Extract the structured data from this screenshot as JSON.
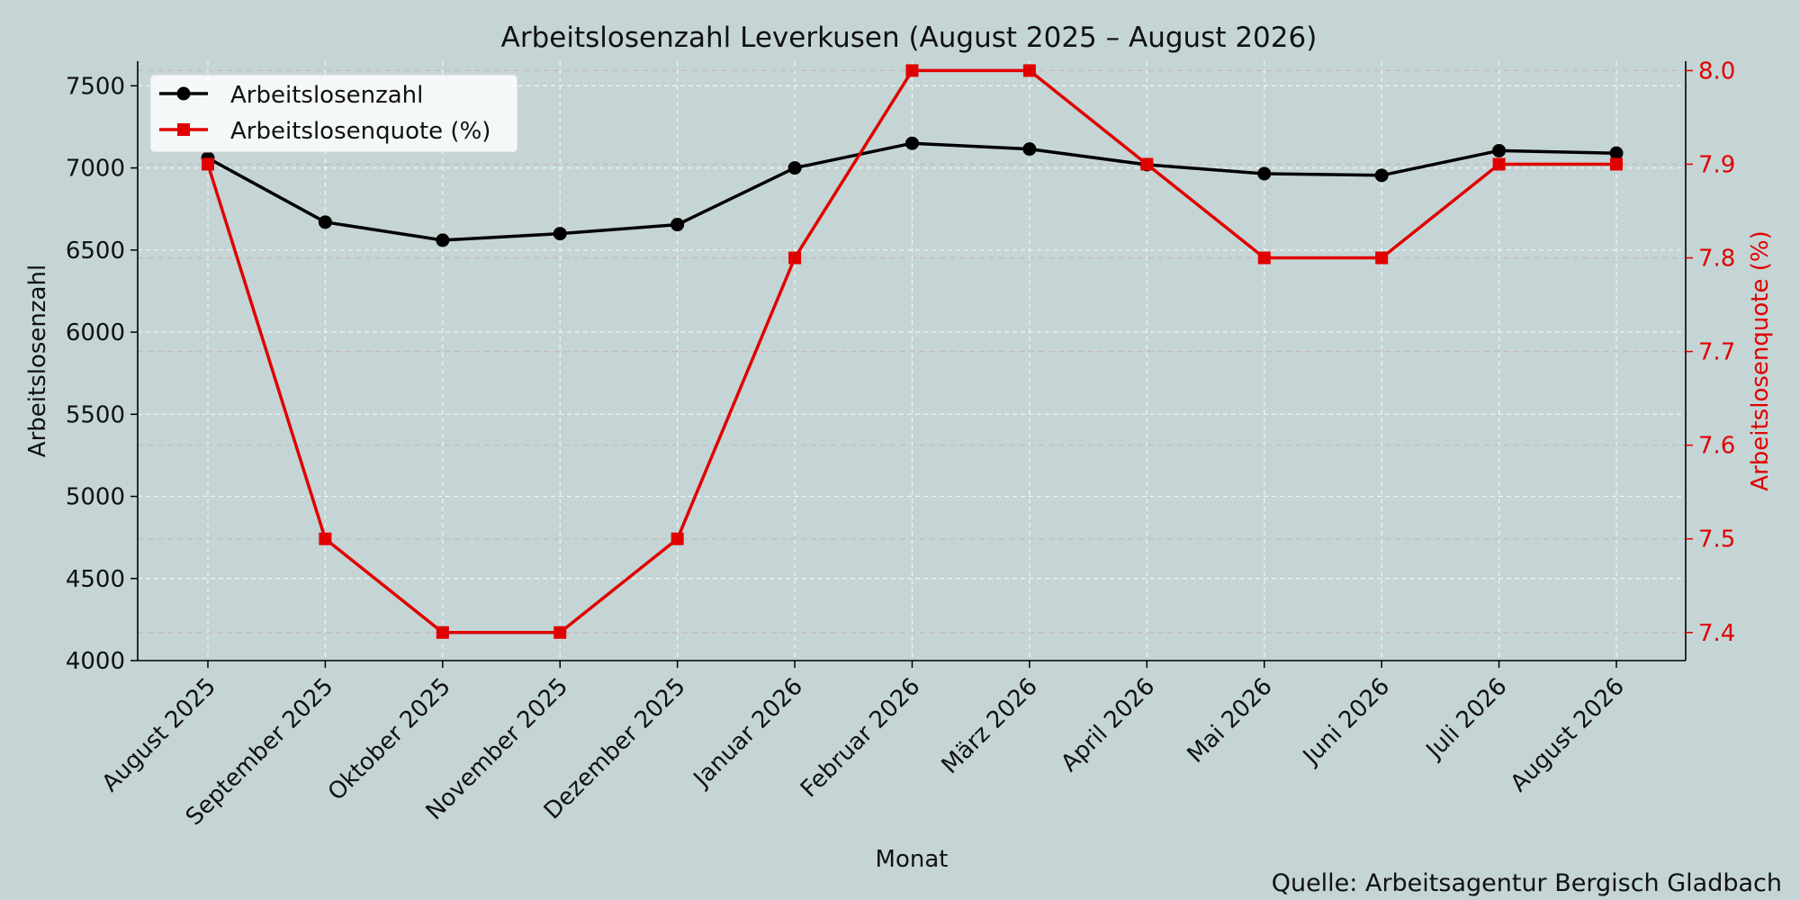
{
  "chart_data": {
    "type": "line",
    "title": "Arbeitslosenzahl Leverkusen (August 2025 – August 2026)",
    "xlabel": "Monat",
    "categories": [
      "August 2025",
      "September 2025",
      "Oktober 2025",
      "November 2025",
      "Dezember 2025",
      "Januar 2026",
      "Februar 2026",
      "März 2026",
      "April 2026",
      "Mai 2026",
      "Juni 2026",
      "Juli 2026",
      "August 2026"
    ],
    "y_left": {
      "label": "Arbeitslosenzahl",
      "lim": [
        4000,
        7650
      ],
      "ticks": [
        4000,
        4500,
        5000,
        5500,
        6000,
        6500,
        7000,
        7500
      ]
    },
    "y_right": {
      "label": "Arbeitslosenquote (%)",
      "lim": [
        7.37,
        8.01
      ],
      "ticks": [
        7.4,
        7.5,
        7.6,
        7.7,
        7.8,
        7.9,
        8.0
      ],
      "color": "#e00000"
    },
    "series": [
      {
        "name": "Arbeitslosenzahl",
        "axis": "left",
        "color": "#000000",
        "marker": "circle",
        "values": [
          7060,
          6670,
          6560,
          6600,
          6655,
          7000,
          7150,
          7115,
          7020,
          6965,
          6955,
          7105,
          7090
        ]
      },
      {
        "name": "Arbeitslosenquote (%)",
        "axis": "right",
        "color": "#e00000",
        "marker": "square",
        "values": [
          7.9,
          7.5,
          7.4,
          7.4,
          7.5,
          7.8,
          8.0,
          8.0,
          7.9,
          7.8,
          7.8,
          7.9,
          7.9
        ]
      }
    ],
    "legend_position": "top-left",
    "grid": true,
    "source": "Quelle: Arbeitsagentur Bergisch Gladbach"
  }
}
